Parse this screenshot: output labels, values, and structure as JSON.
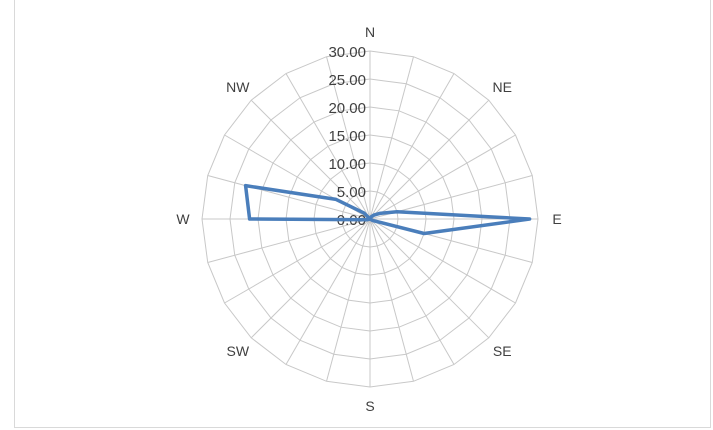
{
  "chart_data": {
    "type": "radar",
    "title": "",
    "directions": [
      "N",
      "",
      "",
      "NE",
      "",
      "",
      "E",
      "",
      "",
      "SE",
      "",
      "",
      "S",
      "",
      "",
      "SW",
      "",
      "",
      "W",
      "",
      "",
      "NW",
      "",
      ""
    ],
    "ticks": [
      "0.00",
      "5.00",
      "10.00",
      "15.00",
      "20.00",
      "25.00",
      "30.00"
    ],
    "rlim": [
      0,
      30
    ],
    "grid": true,
    "series": [
      {
        "values": [
          0,
          0,
          0.5,
          1,
          2,
          5,
          28.5,
          10,
          0.5,
          0,
          0,
          0,
          0,
          0,
          0,
          0,
          0,
          0.5,
          21.5,
          23,
          7,
          1.5,
          0,
          0
        ],
        "color": "#4a7ebb"
      }
    ]
  }
}
